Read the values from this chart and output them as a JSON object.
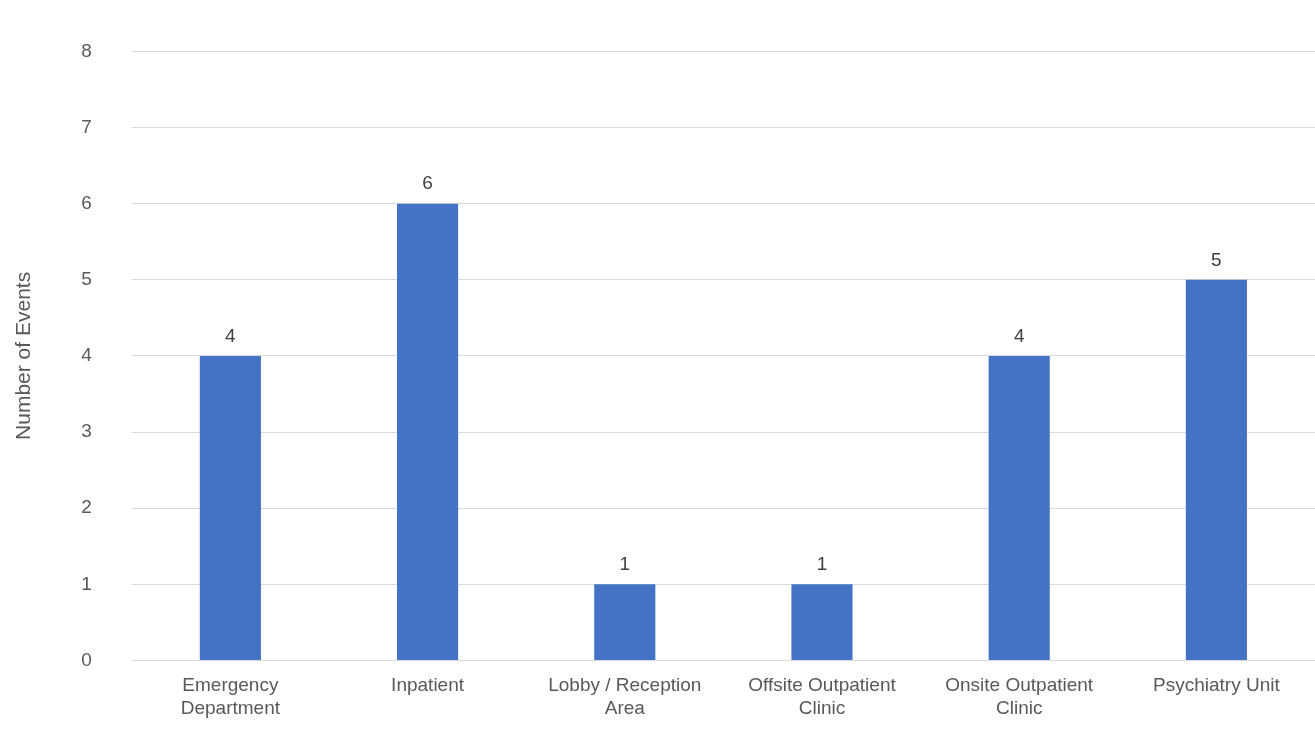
{
  "chart_data": {
    "type": "bar",
    "categories": [
      "Emergency Department",
      "Inpatient",
      "Lobby / Reception Area",
      "Offsite Outpatient Clinic",
      "Onsite Outpatient Clinic",
      "Psychiatry Unit"
    ],
    "values": [
      4,
      6,
      1,
      1,
      4,
      5
    ],
    "color": "#4472c4",
    "ylabel": "Number of Events",
    "ylim": [
      0,
      8
    ],
    "yticks": [
      0,
      1,
      2,
      3,
      4,
      5,
      6,
      7,
      8
    ],
    "grid": "y",
    "legend": false,
    "data_labels": true
  }
}
